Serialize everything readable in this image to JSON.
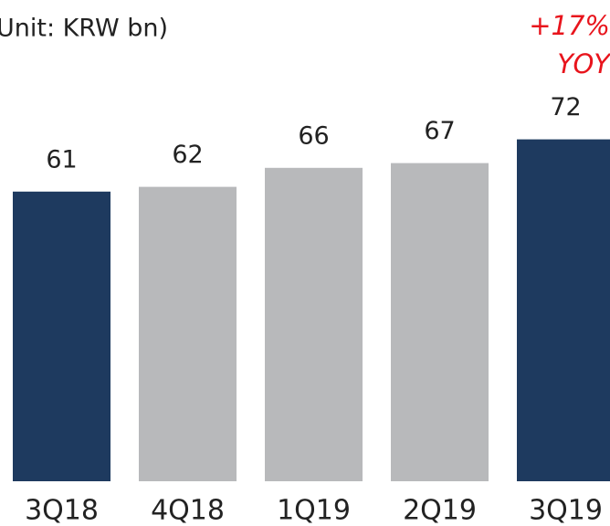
{
  "chart_data": {
    "type": "bar",
    "subtitle": "Unit: KRW bn)",
    "annotations": [
      "+17%",
      "YOY"
    ],
    "categories": [
      "3Q18",
      "4Q18",
      "1Q19",
      "2Q19",
      "3Q19"
    ],
    "values": [
      61,
      62,
      66,
      67,
      72
    ],
    "colors": [
      "#1e3a5f",
      "#b8b9bb",
      "#b8b9bb",
      "#b8b9bb",
      "#1e3a5f"
    ],
    "ylim": [
      0,
      100
    ]
  }
}
